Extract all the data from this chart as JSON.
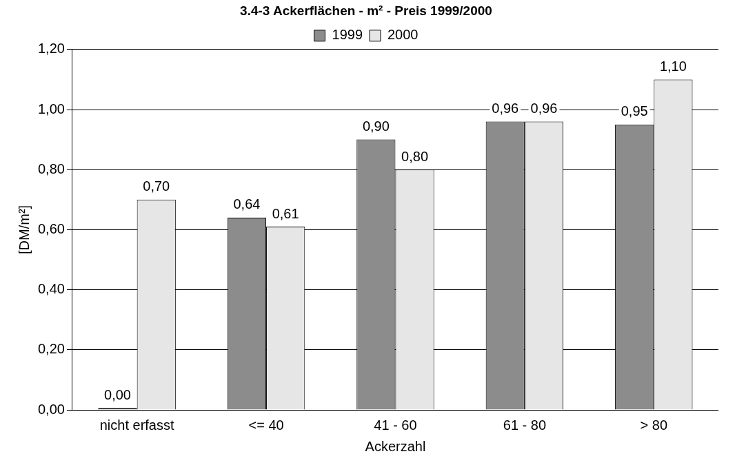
{
  "chart_data": {
    "type": "bar",
    "title": "3.4-3 Ackerflächen - m² - Preis 1999/2000",
    "xlabel": "Ackerzahl",
    "ylabel": "[DM/m²]",
    "categories": [
      "nicht erfasst",
      "<= 40",
      "41 - 60",
      "61 - 80",
      "> 80"
    ],
    "series": [
      {
        "name": "1999",
        "color": "#8c8c8c",
        "values": [
          0.0,
          0.64,
          0.9,
          0.96,
          0.95
        ],
        "value_labels": [
          "0,00",
          "0,64",
          "0,90",
          "0,96",
          "0,95"
        ]
      },
      {
        "name": "2000",
        "color": "#e6e6e6",
        "values": [
          0.7,
          0.61,
          0.8,
          0.96,
          1.1
        ],
        "value_labels": [
          "0,70",
          "0,61",
          "0,80",
          "0,96",
          "1,10"
        ]
      }
    ],
    "ylim": [
      0,
      1.2
    ],
    "yticks": [
      {
        "value": 0,
        "label": "0,00"
      },
      {
        "value": 0.2,
        "label": "0,20"
      },
      {
        "value": 0.4,
        "label": "0,40"
      },
      {
        "value": 0.6,
        "label": "0,60"
      },
      {
        "value": 0.8,
        "label": "0,80"
      },
      {
        "value": 1.0,
        "label": "1,00"
      },
      {
        "value": 1.2,
        "label": "1,20"
      }
    ],
    "grid": "y",
    "legend": "top"
  }
}
